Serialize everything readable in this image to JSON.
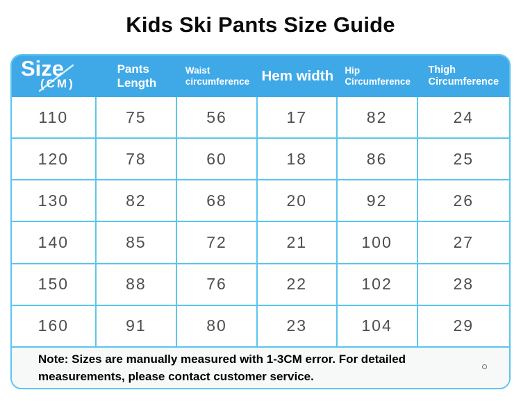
{
  "title": "Kids Ski Pants Size Guide",
  "colors": {
    "header_bg": "#3FA9E8",
    "cell_border": "#5BC5EE",
    "number_text": "#4E4E4E",
    "note_bg": "#F7F8F8"
  },
  "table": {
    "size_label": "Size",
    "size_unit": "(CM)",
    "columns": [
      {
        "line1": "Pants",
        "line2": "Length"
      },
      {
        "line1": "Waist",
        "line2": "circumference"
      },
      {
        "line1": "Hem width",
        "line2": ""
      },
      {
        "line1": "Hip",
        "line2": "Circumference"
      },
      {
        "line1": "Thigh",
        "line2": "Circumference"
      }
    ],
    "rows": [
      [
        "110",
        "75",
        "56",
        "17",
        "82",
        "24"
      ],
      [
        "120",
        "78",
        "60",
        "18",
        "86",
        "25"
      ],
      [
        "130",
        "82",
        "68",
        "20",
        "92",
        "26"
      ],
      [
        "140",
        "85",
        "72",
        "21",
        "100",
        "27"
      ],
      [
        "150",
        "88",
        "76",
        "22",
        "102",
        "28"
      ],
      [
        "160",
        "91",
        "80",
        "23",
        "104",
        "29"
      ]
    ]
  },
  "note": {
    "line1": "Note: Sizes are manually measured with 1-3CM error. For detailed",
    "line2": "measurements, please contact customer service."
  },
  "chart_data": {
    "type": "table",
    "title": "Kids Ski Pants Size Guide",
    "columns": [
      "Size (CM)",
      "Pants Length",
      "Waist circumference",
      "Hem width",
      "Hip Circumference",
      "Thigh Circumference"
    ],
    "rows": [
      [
        110,
        75,
        56,
        17,
        82,
        24
      ],
      [
        120,
        78,
        60,
        18,
        86,
        25
      ],
      [
        130,
        82,
        68,
        20,
        92,
        26
      ],
      [
        140,
        85,
        72,
        21,
        100,
        27
      ],
      [
        150,
        88,
        76,
        22,
        102,
        28
      ],
      [
        160,
        91,
        80,
        23,
        104,
        29
      ]
    ],
    "note": "Note: Sizes are manually measured with 1-3CM error. For detailed measurements, please contact customer service."
  }
}
